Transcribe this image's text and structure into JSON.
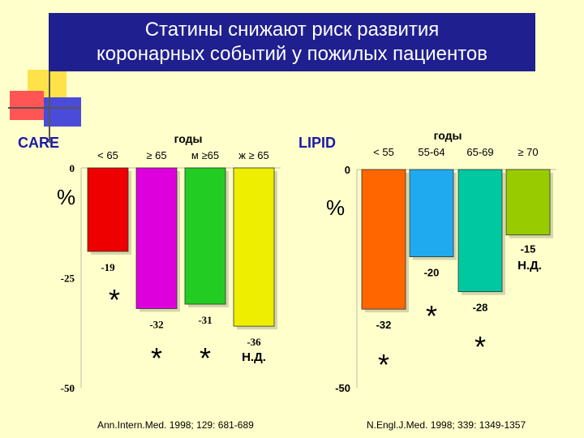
{
  "title": {
    "line1": "Статины снижают риск развития",
    "line2": "коронарных событий у пожилых пациентов"
  },
  "colors": {
    "title_bg": "#1f1f8f",
    "background": "#ffffcc",
    "label_blue": "#1a1aa8",
    "axis_line": "#bdbda3",
    "star_color": "#000000"
  },
  "chart_data": [
    {
      "type": "bar",
      "study": "CARE",
      "header": "годы",
      "unit_label": "%",
      "ylim": [
        -50,
        0
      ],
      "yticks": [
        "0",
        "-25",
        "-50"
      ],
      "categories": [
        "< 65",
        "≥ 65",
        "м ≥65",
        "ж ≥ 65"
      ],
      "values": [
        -19,
        -32,
        -31,
        -36
      ],
      "value_labels": [
        "-19",
        "-32",
        "-31",
        "-36"
      ],
      "colors": [
        "#ee0000",
        "#dd00dd",
        "#22cc22",
        "#eeee00"
      ],
      "significance": [
        "*",
        "*",
        "*",
        ""
      ],
      "notes": [
        "",
        "",
        "",
        "Н.Д."
      ],
      "reference": "Ann.Intern.Med. 1998; 129: 681-689"
    },
    {
      "type": "bar",
      "study": "LIPID",
      "header": "годы",
      "unit_label": "%",
      "ylim": [
        -50,
        0
      ],
      "yticks": [
        "0",
        "-50"
      ],
      "categories": [
        "< 55",
        "55-64",
        "65-69",
        "≥ 70"
      ],
      "values": [
        -32,
        -20,
        -28,
        -15
      ],
      "value_labels": [
        "-32",
        "-20",
        "-28",
        "-15"
      ],
      "colors": [
        "#ff6600",
        "#1faaf0",
        "#00c8a0",
        "#99cc00"
      ],
      "significance": [
        "*",
        "*",
        "*",
        ""
      ],
      "notes": [
        "",
        "",
        "",
        "Н.Д."
      ],
      "reference": "N.Engl.J.Med. 1998; 339: 1349-1357"
    }
  ]
}
